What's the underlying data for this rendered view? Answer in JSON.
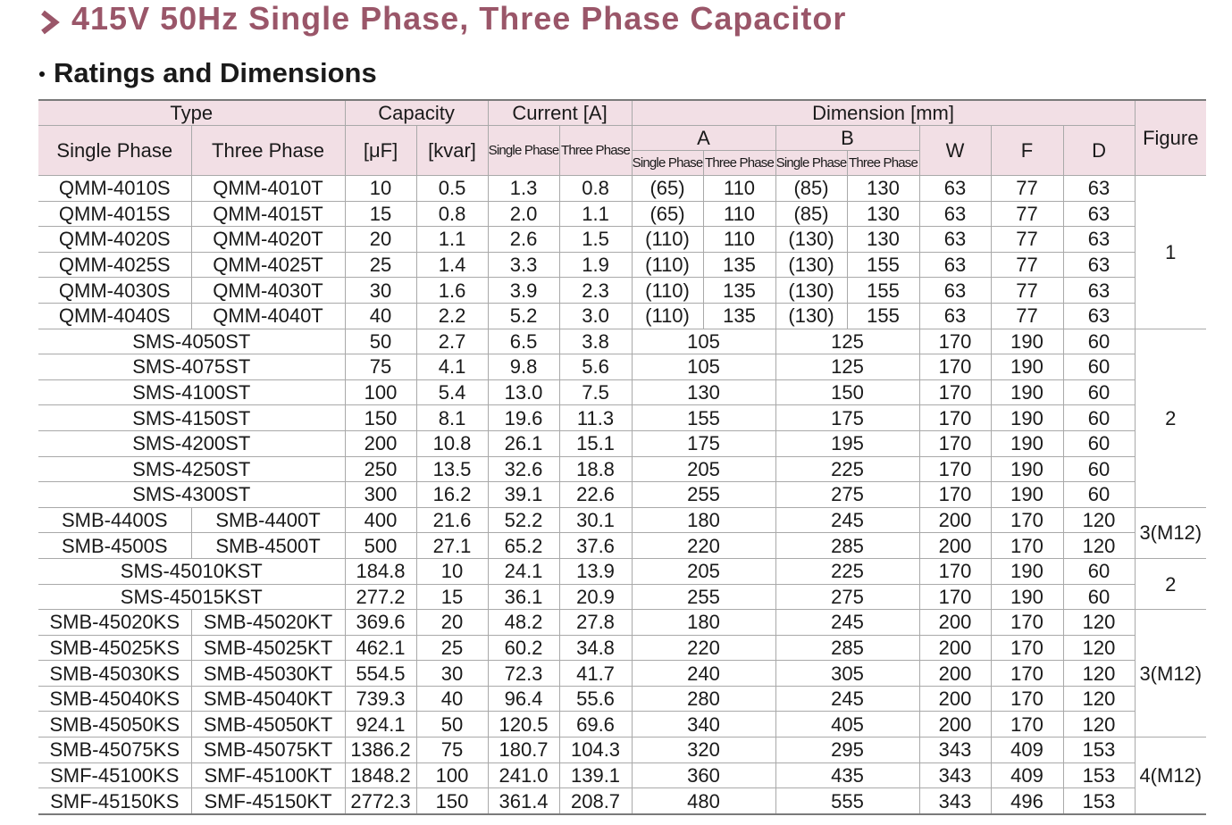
{
  "header": {
    "title": "415V 50Hz Single Phase, Three Phase Capacitor",
    "subtitle": "Ratings and Dimensions"
  },
  "table": {
    "columns": {
      "type": "Type",
      "capacity": "Capacity",
      "current": "Current [A]",
      "dimension": "Dimension [mm]",
      "figure": "Figure",
      "type_single": "Single Phase",
      "type_three": "Three Phase",
      "uf": "[μF]",
      "kvar": "[kvar]",
      "current_single": "Single Phase",
      "current_three": "Three Phase",
      "a": "A",
      "b": "B",
      "w": "W",
      "f": "F",
      "d": "D",
      "a_single": "Single Phase",
      "a_three": "Three Phase",
      "b_single": "Single Phase",
      "b_three": "Three Phase"
    },
    "groups": [
      {
        "figure": "1",
        "rows": [
          [
            "QMM-4010S",
            "QMM-4010T",
            "10",
            "0.5",
            "1.3",
            "0.8",
            "(65)",
            "110",
            "(85)",
            "130",
            "63",
            "77",
            "63"
          ],
          [
            "QMM-4015S",
            "QMM-4015T",
            "15",
            "0.8",
            "2.0",
            "1.1",
            "(65)",
            "110",
            "(85)",
            "130",
            "63",
            "77",
            "63"
          ],
          [
            "QMM-4020S",
            "QMM-4020T",
            "20",
            "1.1",
            "2.6",
            "1.5",
            "(110)",
            "110",
            "(130)",
            "130",
            "63",
            "77",
            "63"
          ],
          [
            "QMM-4025S",
            "QMM-4025T",
            "25",
            "1.4",
            "3.3",
            "1.9",
            "(110)",
            "135",
            "(130)",
            "155",
            "63",
            "77",
            "63"
          ],
          [
            "QMM-4030S",
            "QMM-4030T",
            "30",
            "1.6",
            "3.9",
            "2.3",
            "(110)",
            "135",
            "(130)",
            "155",
            "63",
            "77",
            "63"
          ],
          [
            "QMM-4040S",
            "QMM-4040T",
            "40",
            "2.2",
            "5.2",
            "3.0",
            "(110)",
            "135",
            "(130)",
            "155",
            "63",
            "77",
            "63"
          ]
        ]
      },
      {
        "figure": "2",
        "rows": [
          [
            "SMS-4050ST",
            "50",
            "2.7",
            "6.5",
            "3.8",
            "105",
            "125",
            "170",
            "190",
            "60"
          ],
          [
            "SMS-4075ST",
            "75",
            "4.1",
            "9.8",
            "5.6",
            "105",
            "125",
            "170",
            "190",
            "60"
          ],
          [
            "SMS-4100ST",
            "100",
            "5.4",
            "13.0",
            "7.5",
            "130",
            "150",
            "170",
            "190",
            "60"
          ],
          [
            "SMS-4150ST",
            "150",
            "8.1",
            "19.6",
            "11.3",
            "155",
            "175",
            "170",
            "190",
            "60"
          ],
          [
            "SMS-4200ST",
            "200",
            "10.8",
            "26.1",
            "15.1",
            "175",
            "195",
            "170",
            "190",
            "60"
          ],
          [
            "SMS-4250ST",
            "250",
            "13.5",
            "32.6",
            "18.8",
            "205",
            "225",
            "170",
            "190",
            "60"
          ],
          [
            "SMS-4300ST",
            "300",
            "16.2",
            "39.1",
            "22.6",
            "255",
            "275",
            "170",
            "190",
            "60"
          ]
        ]
      },
      {
        "figure": "3(M12)",
        "rows": [
          [
            "SMB-4400S",
            "SMB-4400T",
            "400",
            "21.6",
            "52.2",
            "30.1",
            "180",
            "245",
            "200",
            "170",
            "120"
          ],
          [
            "SMB-4500S",
            "SMB-4500T",
            "500",
            "27.1",
            "65.2",
            "37.6",
            "220",
            "285",
            "200",
            "170",
            "120"
          ]
        ]
      },
      {
        "figure": "2",
        "rows": [
          [
            "SMS-45010KST",
            "184.8",
            "10",
            "24.1",
            "13.9",
            "205",
            "225",
            "170",
            "190",
            "60"
          ],
          [
            "SMS-45015KST",
            "277.2",
            "15",
            "36.1",
            "20.9",
            "255",
            "275",
            "170",
            "190",
            "60"
          ]
        ]
      },
      {
        "figure": "3(M12)",
        "rows": [
          [
            "SMB-45020KS",
            "SMB-45020KT",
            "369.6",
            "20",
            "48.2",
            "27.8",
            "180",
            "245",
            "200",
            "170",
            "120"
          ],
          [
            "SMB-45025KS",
            "SMB-45025KT",
            "462.1",
            "25",
            "60.2",
            "34.8",
            "220",
            "285",
            "200",
            "170",
            "120"
          ],
          [
            "SMB-45030KS",
            "SMB-45030KT",
            "554.5",
            "30",
            "72.3",
            "41.7",
            "240",
            "305",
            "200",
            "170",
            "120"
          ],
          [
            "SMB-45040KS",
            "SMB-45040KT",
            "739.3",
            "40",
            "96.4",
            "55.6",
            "280",
            "245",
            "200",
            "170",
            "120"
          ],
          [
            "SMB-45050KS",
            "SMB-45050KT",
            "924.1",
            "50",
            "120.5",
            "69.6",
            "340",
            "405",
            "200",
            "170",
            "120"
          ]
        ]
      },
      {
        "figure": "4(M12)",
        "rows": [
          [
            "SMB-45075KS",
            "SMB-45075KT",
            "1386.2",
            "75",
            "180.7",
            "104.3",
            "320",
            "295",
            "343",
            "409",
            "153"
          ],
          [
            "SMF-45100KS",
            "SMF-45100KT",
            "1848.2",
            "100",
            "241.0",
            "139.1",
            "360",
            "435",
            "343",
            "409",
            "153"
          ],
          [
            "SMF-45150KS",
            "SMF-45150KT",
            "2772.3",
            "150",
            "361.4",
            "208.7",
            "480",
            "555",
            "343",
            "496",
            "153"
          ]
        ]
      }
    ]
  }
}
